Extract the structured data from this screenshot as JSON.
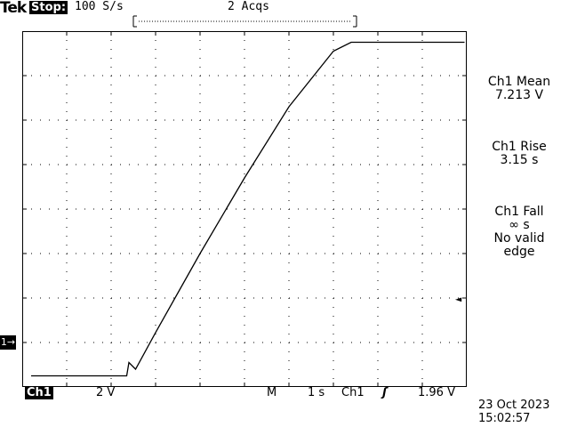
{
  "header": {
    "brand": "Tek",
    "status": "Stop:",
    "sample_rate": "100 S/s",
    "acquisitions": "2 Acqs"
  },
  "measurements": [
    {
      "title": "Ch1 Mean",
      "value": "7.213 V",
      "note": ""
    },
    {
      "title": "Ch1 Rise",
      "value": "3.15 s",
      "note": ""
    },
    {
      "title": "Ch1 Fall",
      "value": "∞ s",
      "note": "No valid\nedge"
    }
  ],
  "markers": {
    "channel_ground": "1→",
    "trigger_level": "◄"
  },
  "footer": {
    "channel": "Ch1",
    "volts_per_div": "2 V",
    "timebase_label": "M",
    "time_per_div": "1 s",
    "trigger_source": "Ch1",
    "trigger_slope": "ʃ",
    "trigger_level": "1.96 V",
    "date": "23 Oct 2023",
    "time": "15:02:57"
  },
  "chart_data": {
    "type": "line",
    "title": "",
    "xlabel": "",
    "ylabel": "",
    "x_unit": "s",
    "y_unit": "V",
    "xlim": [
      -5,
      5
    ],
    "ylim": [
      -0.5,
      15.5
    ],
    "series": [
      {
        "name": "",
        "x": [
          -4.8,
          -2.65,
          -2.6,
          -2.45,
          -2.0,
          -1.0,
          0.0,
          1.0,
          2.0,
          2.4,
          4.95
        ],
        "y": [
          0.0,
          0.0,
          0.6,
          0.3,
          1.95,
          5.5,
          8.9,
          12.1,
          14.6,
          15.0,
          15.0
        ]
      }
    ],
    "grid": true,
    "divisions": {
      "x": 10,
      "y": 8
    }
  }
}
